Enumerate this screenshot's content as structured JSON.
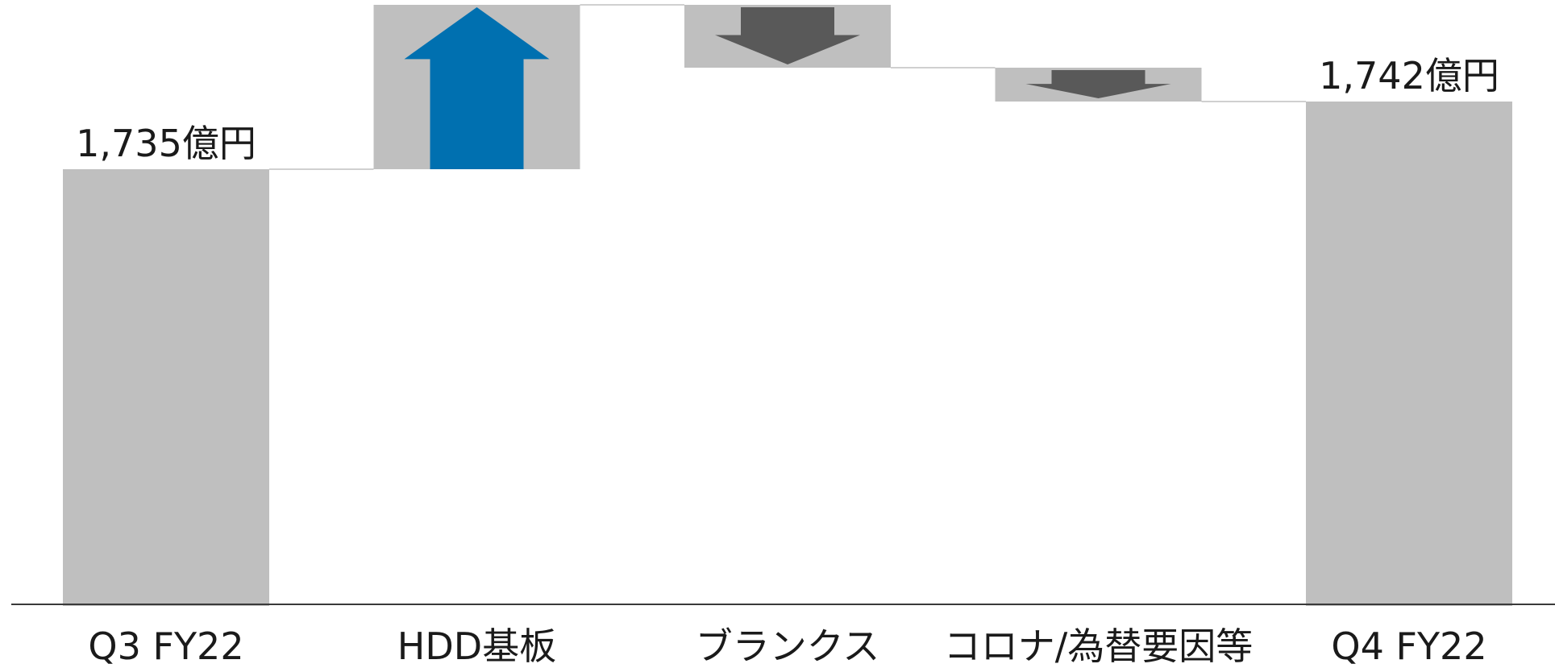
{
  "chart_data": {
    "type": "bar",
    "subtype": "waterfall",
    "title": "",
    "xlabel": "",
    "ylabel": "",
    "unit": "億円",
    "categories": [
      "Q3 FY22",
      "HDD基板",
      "ブランクス",
      "コロナ/為替要因等",
      "Q4 FY22"
    ],
    "steps": [
      {
        "category": "Q3 FY22",
        "kind": "total",
        "value": 1735,
        "direction": "none"
      },
      {
        "category": "HDD基板",
        "kind": "delta",
        "value": 17,
        "direction": "up"
      },
      {
        "category": "ブランクス",
        "kind": "delta",
        "value": -6.5,
        "direction": "down"
      },
      {
        "category": "コロナ/為替要因等",
        "kind": "delta",
        "value": -3.5,
        "direction": "down"
      },
      {
        "category": "Q4 FY22",
        "kind": "total",
        "value": 1742,
        "direction": "none"
      }
    ],
    "data_labels": [
      "1,735億円",
      "",
      "",
      "",
      "1,742億円"
    ],
    "ylim": [
      1690,
      1752
    ],
    "grid": false,
    "legend": "none",
    "colors": {
      "total_bar": "#bfbfbf",
      "delta_bar": "#bfbfbf",
      "up_arrow": "#0070b0",
      "down_arrow": "#595959",
      "connector": "#d0d0d0",
      "axis": "#3a3a3a"
    }
  }
}
